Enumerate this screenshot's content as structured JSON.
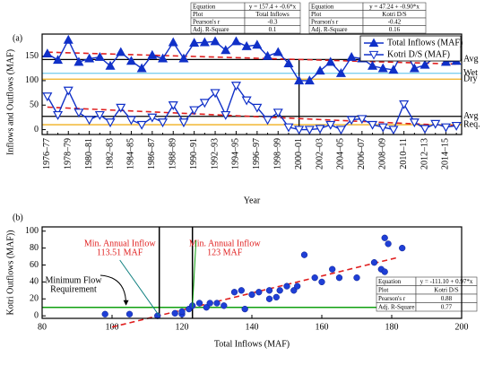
{
  "chart_data": [
    {
      "type": "line",
      "panel_label": "(a)",
      "xlabel": "Year",
      "ylabel": "Inflows and Outflows (MAF)",
      "categories": [
        "1976–77",
        null,
        "1978–79",
        null,
        "1980–81",
        null,
        "1982–83",
        null,
        "1984–85",
        null,
        "1986–87",
        null,
        "1988–89",
        null,
        "1990–91",
        null,
        "1992–93",
        null,
        "1994–95",
        null,
        "1996–97",
        null,
        "1998–99",
        null,
        "2000–01",
        null,
        "2002–03",
        null,
        "2004–05",
        null,
        "2006–07",
        null,
        "2008–09",
        null,
        "2010–11",
        null,
        "2012–13",
        null,
        "2014–15",
        null
      ],
      "series": [
        {
          "name": "Total Inflows (MAF)",
          "color": "#1030c8",
          "marker": "triangle-up",
          "values": [
            155,
            142,
            183,
            138,
            145,
            148,
            130,
            158,
            140,
            125,
            152,
            145,
            178,
            145,
            177,
            178,
            180,
            162,
            180,
            170,
            173,
            150,
            158,
            135,
            100,
            100,
            120,
            138,
            115,
            148,
            145,
            130,
            125,
            122,
            165,
            125,
            132,
            148,
            138,
            140
          ]
        },
        {
          "name": "Kotri D/S (MAF)",
          "color": "#1030c8",
          "marker": "triangle-down",
          "values": [
            68,
            30,
            80,
            35,
            20,
            30,
            15,
            45,
            20,
            10,
            25,
            15,
            50,
            15,
            40,
            55,
            75,
            30,
            90,
            60,
            45,
            20,
            35,
            5,
            0,
            0,
            2,
            10,
            0,
            20,
            22,
            10,
            5,
            0,
            52,
            15,
            2,
            12,
            5,
            8
          ]
        }
      ],
      "ylim": [
        -10,
        195
      ],
      "yticks": [
        0,
        50,
        100,
        150
      ],
      "reference_lines": [
        {
          "label": "Avg",
          "value": 143,
          "color": "#000000"
        },
        {
          "label": "Wet",
          "value": 115,
          "color": "#7fd0f0"
        },
        {
          "label": "Dry",
          "value": 103,
          "color": "#f0b020"
        },
        {
          "label": "Avg",
          "value": 27,
          "color": "#000000"
        },
        {
          "label": "Req.",
          "value": 10,
          "color": "#f0b020"
        }
      ],
      "vline_at": "2000–01",
      "trend_color": "#e02020",
      "stats_tables": [
        {
          "rows": [
            [
              "Equation",
              "y = 157.4 + -0.6*x"
            ],
            [
              "Plot",
              "Total Inflows"
            ],
            [
              "Pearson's r",
              "-0.3"
            ],
            [
              "Adj. R-Square",
              "0.1"
            ]
          ]
        },
        {
          "rows": [
            [
              "Equation",
              "y = 47.24 + -0.90*x"
            ],
            [
              "Plot",
              "Kotri D/S"
            ],
            [
              "Pearson's r",
              "-0.42"
            ],
            [
              "Adj. R-Square",
              "0.16"
            ]
          ]
        }
      ]
    },
    {
      "type": "scatter",
      "panel_label": "(b)",
      "xlabel": "Total Inflows (MAF)",
      "ylabel": "Kotri Outflows (MAF))",
      "x": [
        98,
        105,
        113,
        118,
        120,
        120,
        122,
        123,
        125,
        127,
        128,
        130,
        132,
        135,
        137,
        138,
        140,
        142,
        145,
        145,
        147,
        148,
        150,
        152,
        153,
        155,
        158,
        160,
        163,
        165,
        170,
        175,
        177,
        178,
        178,
        179,
        183
      ],
      "y": [
        2,
        2,
        0,
        3,
        2,
        5,
        8,
        12,
        15,
        10,
        15,
        15,
        12,
        28,
        30,
        8,
        25,
        28,
        20,
        30,
        22,
        30,
        35,
        30,
        35,
        72,
        45,
        40,
        55,
        45,
        45,
        63,
        55,
        52,
        92,
        85,
        80
      ],
      "color": "#1f3fd6",
      "xlim": [
        80,
        200
      ],
      "xticks": [
        80,
        100,
        120,
        140,
        160,
        180,
        200
      ],
      "ylim": [
        -3,
        105
      ],
      "yticks": [
        0,
        20,
        40,
        60,
        80,
        100
      ],
      "trend_color": "#e02020",
      "reference_x": [
        {
          "value": 113.51,
          "color": "#000000"
        },
        {
          "value": 123,
          "color": "#000000"
        }
      ],
      "reference_y": [
        {
          "value": 10,
          "color": "#10a010"
        }
      ],
      "annotations": [
        {
          "lines": [
            "Min. Annual Inflow",
            "113.51 MAF"
          ],
          "color": "#e02020"
        },
        {
          "lines": [
            "Min. Annual Inflow",
            "123 MAF"
          ],
          "color": "#e02020"
        },
        {
          "lines": [
            "Minimum Flow",
            "Requirement"
          ],
          "color": "#000000"
        }
      ],
      "stats_table": {
        "rows": [
          [
            "Equation",
            "y = -111.10 + 0.97*x"
          ],
          [
            "Plot",
            "Kotri D/S"
          ],
          [
            "Pearson's r",
            "0.88"
          ],
          [
            "Adj. R-Square",
            "0.77"
          ]
        ]
      }
    }
  ]
}
